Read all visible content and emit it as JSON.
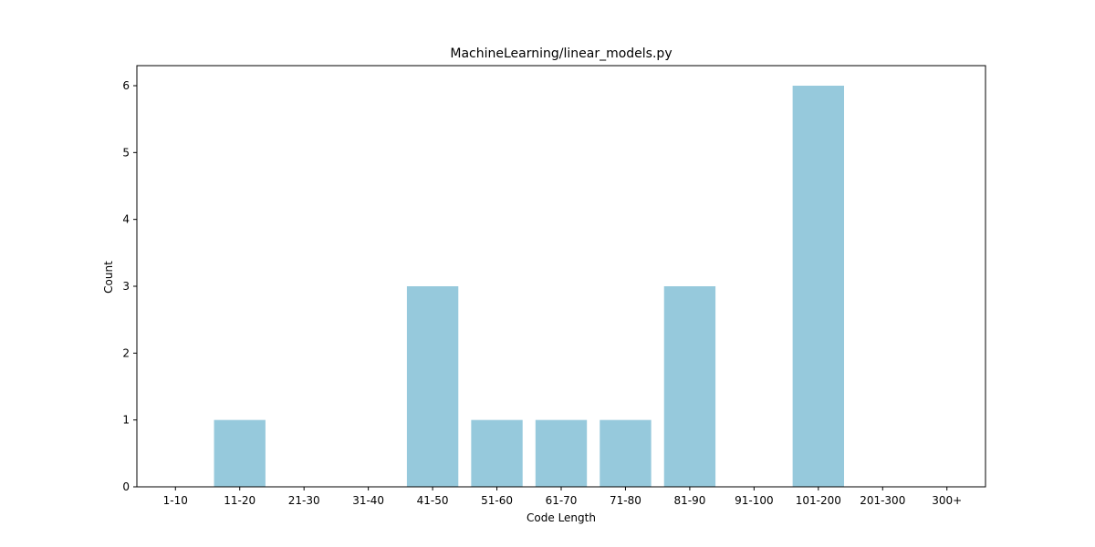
{
  "chart_data": {
    "type": "bar",
    "title": "MachineLearning/linear_models.py",
    "xlabel": "Code Length",
    "ylabel": "Count",
    "categories": [
      "1-10",
      "11-20",
      "21-30",
      "31-40",
      "41-50",
      "51-60",
      "61-70",
      "71-80",
      "81-90",
      "91-100",
      "101-200",
      "201-300",
      "300+"
    ],
    "values": [
      0,
      1,
      0,
      0,
      3,
      1,
      1,
      1,
      3,
      0,
      6,
      0,
      0
    ],
    "ylim": [
      0,
      6.3
    ],
    "yticks": [
      0,
      1,
      2,
      3,
      4,
      5,
      6
    ],
    "bar_color": "#96c9dc",
    "grid": false,
    "legend": "none"
  }
}
